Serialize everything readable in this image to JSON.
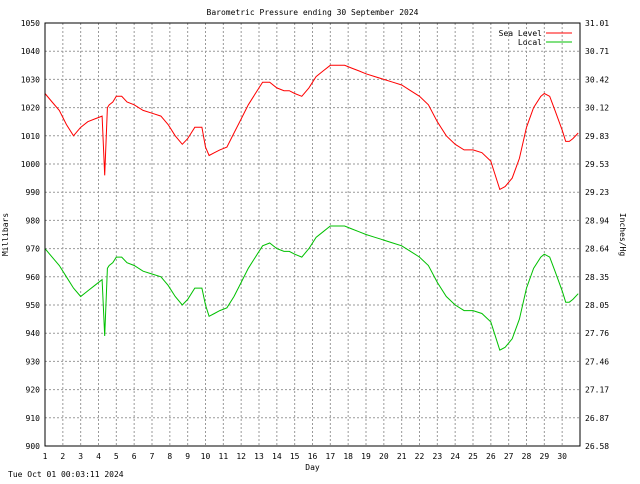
{
  "chart_data": {
    "type": "line",
    "title": "Barometric Pressure ending 30 September 2024",
    "xlabel": "Day",
    "ylabel_left": "Millibars",
    "ylabel_right": "Inches/Hg",
    "footer": "Tue Oct 01 00:03:11 2024",
    "xlim": [
      1,
      31
    ],
    "ylim": [
      900,
      1050
    ],
    "y_ticks_left": [
      "900",
      "910",
      "920",
      "930",
      "940",
      "950",
      "960",
      "970",
      "980",
      "990",
      "1000",
      "1010",
      "1020",
      "1030",
      "1040",
      "1050"
    ],
    "y_ticks_right": [
      "26.58",
      "26.87",
      "27.17",
      "27.46",
      "27.76",
      "28.05",
      "28.35",
      "28.64",
      "28.94",
      "29.23",
      "29.53",
      "29.83",
      "30.12",
      "30.42",
      "30.71",
      "31.01"
    ],
    "x_ticks": [
      "1",
      "2",
      "3",
      "4",
      "5",
      "6",
      "7",
      "8",
      "9",
      "10",
      "11",
      "12",
      "13",
      "14",
      "15",
      "16",
      "17",
      "18",
      "19",
      "20",
      "21",
      "22",
      "23",
      "24",
      "25",
      "26",
      "27",
      "28",
      "29",
      "30"
    ],
    "grid": true,
    "legend_position": "top-right",
    "series": [
      {
        "name": "Sea Level",
        "color": "#ff0000",
        "x": [
          1.0,
          1.4,
          1.8,
          2.2,
          2.6,
          3.0,
          3.4,
          3.8,
          4.2,
          4.35,
          4.5,
          4.6,
          4.8,
          5.0,
          5.3,
          5.6,
          6.0,
          6.5,
          7.0,
          7.5,
          7.9,
          8.3,
          8.7,
          9.0,
          9.4,
          9.8,
          10.0,
          10.2,
          10.5,
          10.8,
          11.2,
          11.6,
          12.0,
          12.4,
          12.8,
          13.2,
          13.6,
          14.0,
          14.4,
          14.7,
          15.0,
          15.4,
          15.8,
          16.2,
          16.6,
          17.0,
          17.4,
          17.8,
          18.2,
          18.6,
          19.0,
          19.5,
          20.0,
          20.5,
          21.0,
          21.5,
          22.0,
          22.5,
          23.0,
          23.5,
          24.0,
          24.5,
          25.0,
          25.5,
          26.0,
          26.2,
          26.5,
          26.8,
          27.2,
          27.6,
          28.0,
          28.4,
          28.8,
          29.0,
          29.3,
          29.6,
          30.0,
          30.2,
          30.4,
          30.6,
          30.9
        ],
        "values": [
          1025,
          1022,
          1019,
          1014,
          1010,
          1013,
          1015,
          1016,
          1017,
          996,
          1020,
          1021,
          1022,
          1024,
          1024,
          1022,
          1021,
          1019,
          1018,
          1017,
          1014,
          1010,
          1007,
          1009,
          1013,
          1013,
          1006,
          1003,
          1004,
          1005,
          1006,
          1011,
          1016,
          1021,
          1025,
          1029,
          1029,
          1027,
          1026,
          1026,
          1025,
          1024,
          1027,
          1031,
          1033,
          1035,
          1035,
          1035,
          1034,
          1033,
          1032,
          1031,
          1030,
          1029,
          1028,
          1026,
          1024,
          1021,
          1015,
          1010,
          1007,
          1005,
          1005,
          1004,
          1001,
          997,
          991,
          992,
          995,
          1002,
          1013,
          1020,
          1024,
          1025,
          1024,
          1019,
          1012,
          1008,
          1008,
          1009,
          1011
        ]
      },
      {
        "name": "Local",
        "color": "#00c000",
        "x": [
          1.0,
          1.4,
          1.8,
          2.2,
          2.6,
          3.0,
          3.4,
          3.8,
          4.2,
          4.35,
          4.5,
          4.6,
          4.8,
          5.0,
          5.3,
          5.6,
          6.0,
          6.5,
          7.0,
          7.5,
          7.9,
          8.3,
          8.7,
          9.0,
          9.4,
          9.8,
          10.0,
          10.2,
          10.5,
          10.8,
          11.2,
          11.6,
          12.0,
          12.4,
          12.8,
          13.2,
          13.6,
          14.0,
          14.4,
          14.7,
          15.0,
          15.4,
          15.8,
          16.2,
          16.6,
          17.0,
          17.4,
          17.8,
          18.2,
          18.6,
          19.0,
          19.5,
          20.0,
          20.5,
          21.0,
          21.5,
          22.0,
          22.5,
          23.0,
          23.5,
          24.0,
          24.5,
          25.0,
          25.5,
          26.0,
          26.2,
          26.5,
          26.8,
          27.2,
          27.6,
          28.0,
          28.4,
          28.8,
          29.0,
          29.3,
          29.6,
          30.0,
          30.2,
          30.4,
          30.6,
          30.9
        ],
        "values": [
          970,
          967,
          964,
          960,
          956,
          953,
          955,
          957,
          959,
          939,
          963,
          964,
          965,
          967,
          967,
          965,
          964,
          962,
          961,
          960,
          957,
          953,
          950,
          952,
          956,
          956,
          950,
          946,
          947,
          948,
          949,
          953,
          958,
          963,
          967,
          971,
          972,
          970,
          969,
          969,
          968,
          967,
          970,
          974,
          976,
          978,
          978,
          978,
          977,
          976,
          975,
          974,
          973,
          972,
          971,
          969,
          967,
          964,
          958,
          953,
          950,
          948,
          948,
          947,
          944,
          940,
          934,
          935,
          938,
          945,
          956,
          963,
          967,
          968,
          967,
          962,
          955,
          951,
          951,
          952,
          954
        ]
      }
    ]
  }
}
